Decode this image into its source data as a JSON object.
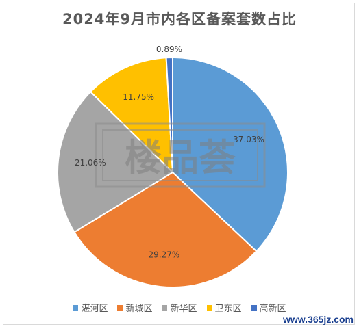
{
  "chart_data": {
    "type": "pie",
    "title": "2024年9月市内各区备案套数占比",
    "categories": [
      "湛河区",
      "新城区",
      "新华区",
      "卫东区",
      "高新区"
    ],
    "values": [
      37.03,
      29.27,
      21.06,
      11.75,
      0.89
    ],
    "labels": [
      "37.03%",
      "29.27%",
      "21.06%",
      "11.75%",
      "0.89%"
    ],
    "colors": [
      "#5b9bd5",
      "#ed7d31",
      "#a5a5a5",
      "#ffc000",
      "#4472c4"
    ],
    "legend_position": "bottom"
  },
  "watermark": {
    "text": "楼品荟"
  },
  "source_mark": {
    "text": "www.365jz.com"
  }
}
